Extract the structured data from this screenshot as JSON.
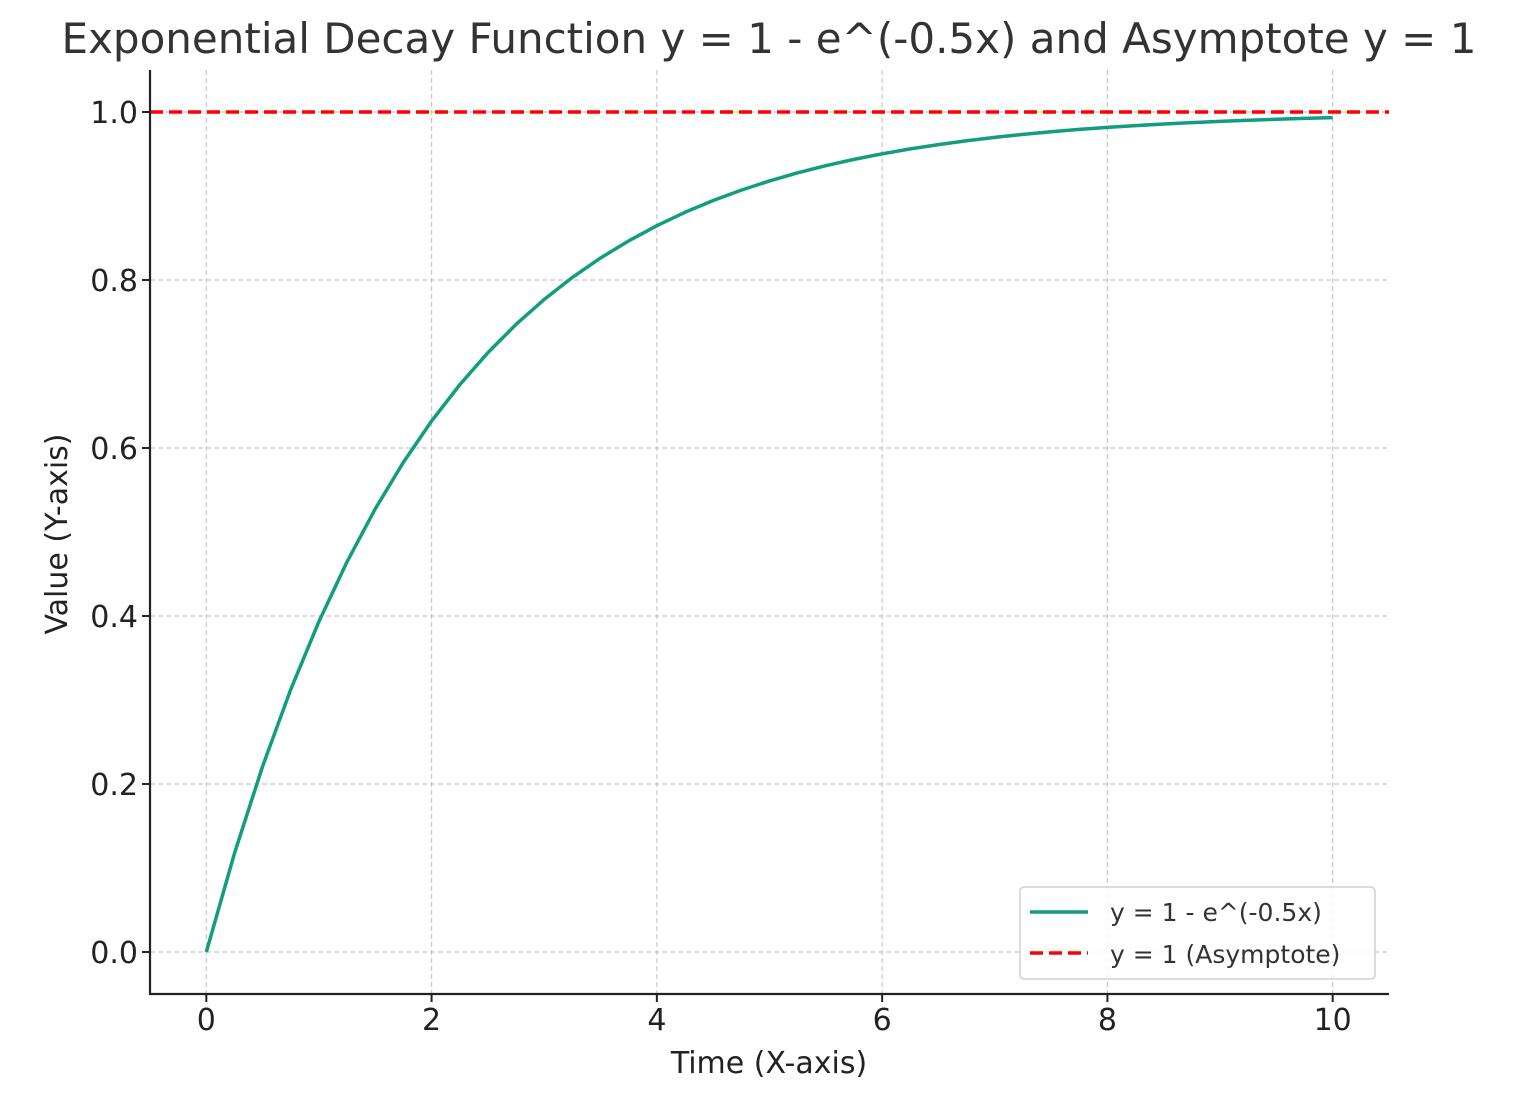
{
  "chart_data": {
    "type": "line",
    "title": "Exponential Decay Function y = 1 - e^(-0.5x) and Asymptote y = 1",
    "xlabel": "Time (X-axis)",
    "ylabel": "Value (Y-axis)",
    "xlim": [
      -0.5,
      10.5
    ],
    "ylim": [
      -0.05,
      1.05
    ],
    "xticks": [
      0,
      2,
      4,
      6,
      8,
      10
    ],
    "xtick_labels": [
      "0",
      "2",
      "4",
      "6",
      "8",
      "10"
    ],
    "yticks": [
      0.0,
      0.2,
      0.4,
      0.6,
      0.8,
      1.0
    ],
    "ytick_labels": [
      "0.0",
      "0.2",
      "0.4",
      "0.6",
      "0.8",
      "1.0"
    ],
    "grid": true,
    "legend_position": "bottom-right",
    "series": [
      {
        "name": "y = 1 - e^(-0.5x)",
        "style": "solid",
        "color": "#129e7e",
        "x": [
          0,
          0.25,
          0.5,
          0.75,
          1,
          1.25,
          1.5,
          1.75,
          2,
          2.25,
          2.5,
          2.75,
          3,
          3.25,
          3.5,
          3.75,
          4,
          4.25,
          4.5,
          4.75,
          5,
          5.25,
          5.5,
          5.75,
          6,
          6.25,
          6.5,
          6.75,
          7,
          7.25,
          7.5,
          7.75,
          8,
          8.25,
          8.5,
          8.75,
          9,
          9.25,
          9.5,
          9.75,
          10
        ],
        "y": [
          0,
          0.1175,
          0.2212,
          0.3127,
          0.3935,
          0.4647,
          0.5276,
          0.5831,
          0.6321,
          0.6753,
          0.7135,
          0.7472,
          0.7769,
          0.8031,
          0.8262,
          0.8466,
          0.8647,
          0.8806,
          0.8946,
          0.907,
          0.9179,
          0.9276,
          0.9361,
          0.9436,
          0.9502,
          0.9561,
          0.9612,
          0.9658,
          0.9698,
          0.9734,
          0.9765,
          0.9793,
          0.9817,
          0.9838,
          0.9857,
          0.9874,
          0.9889,
          0.9902,
          0.9913,
          0.9924,
          0.9933
        ]
      },
      {
        "name": "y = 1 (Asymptote)",
        "style": "dashed",
        "color": "#ff0000",
        "x": [
          -0.5,
          10.5
        ],
        "y": [
          1,
          1
        ]
      }
    ]
  }
}
